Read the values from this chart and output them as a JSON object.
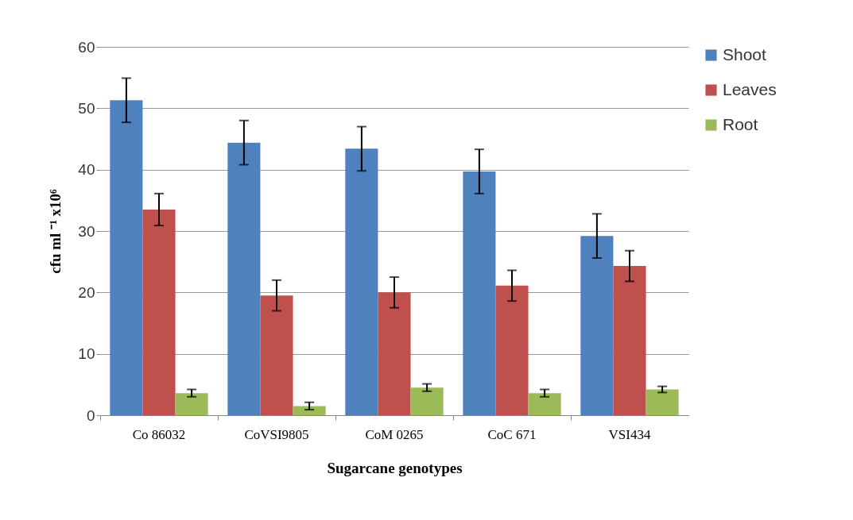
{
  "chart_data": {
    "type": "bar",
    "xlabel": "Sugarcane genotypes",
    "ylabel": "cfu ml ⁻¹ x10⁶",
    "categories": [
      "Co 86032",
      "CoVSI9805",
      "CoM 0265",
      "CoC 671",
      "VSI434"
    ],
    "series": [
      {
        "name": "Shoot",
        "color": "#4f81bd",
        "values": [
          51.3,
          44.4,
          43.4,
          39.7,
          29.2
        ],
        "errors": [
          3.6,
          3.6,
          3.6,
          3.6,
          3.6
        ]
      },
      {
        "name": "Leaves",
        "color": "#c0504d",
        "values": [
          33.5,
          19.5,
          20.0,
          21.1,
          24.3
        ],
        "errors": [
          2.6,
          2.5,
          2.5,
          2.5,
          2.5
        ]
      },
      {
        "name": "Root",
        "color": "#9bbb59",
        "values": [
          3.6,
          1.5,
          4.5,
          3.6,
          4.2
        ],
        "errors": [
          0.6,
          0.6,
          0.6,
          0.6,
          0.5
        ]
      }
    ],
    "ylim": [
      0,
      60
    ],
    "yticks": [
      0,
      10,
      20,
      30,
      40,
      50,
      60
    ],
    "grid": "y",
    "legend": "right"
  }
}
